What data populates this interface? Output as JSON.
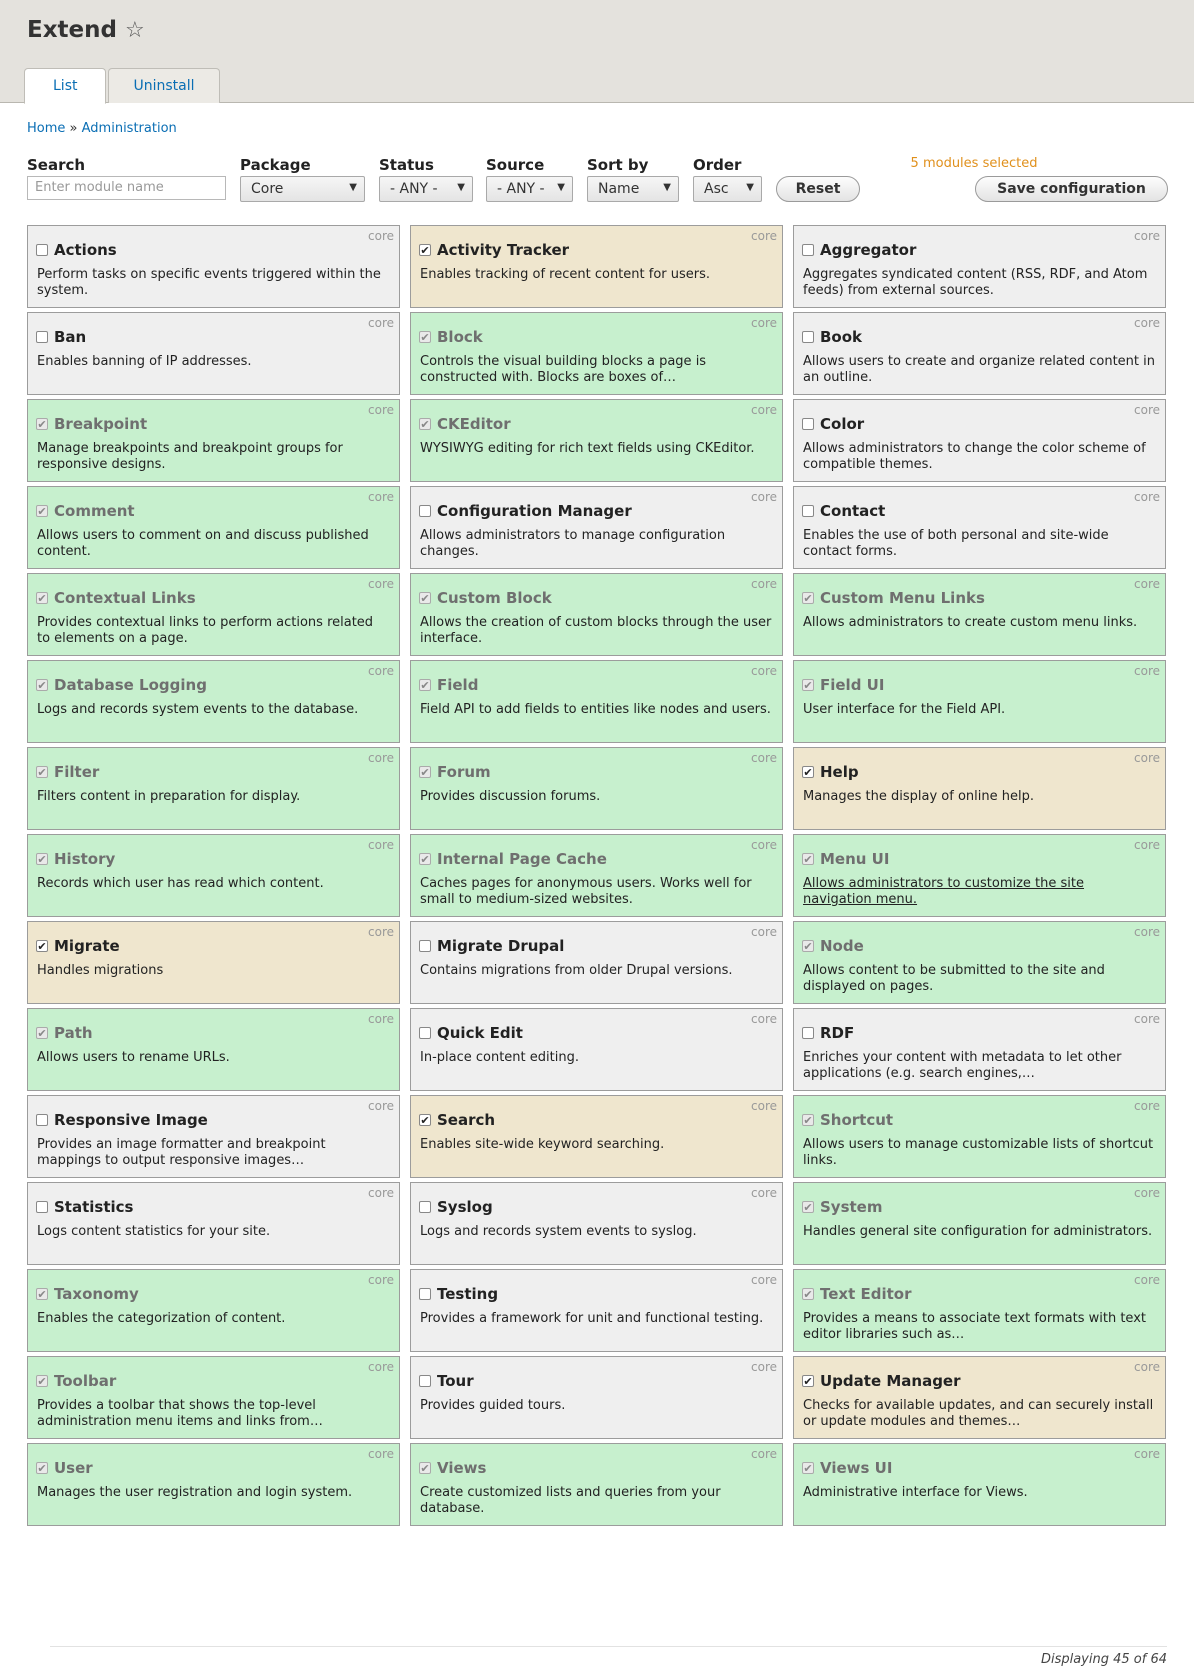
{
  "page": {
    "title": "Extend",
    "star_icon": "star-outline-icon"
  },
  "tabs": [
    {
      "label": "List",
      "active": true
    },
    {
      "label": "Uninstall",
      "active": false
    }
  ],
  "breadcrumb": {
    "home": "Home",
    "sep": "»",
    "admin": "Administration"
  },
  "filters": {
    "search_label": "Search",
    "search_placeholder": "Enter module name",
    "package_label": "Package",
    "package_value": "Core",
    "status_label": "Status",
    "status_value": "- ANY -",
    "source_label": "Source",
    "source_value": "- ANY -",
    "sortby_label": "Sort by",
    "sortby_value": "Name",
    "order_label": "Order",
    "order_value": "Asc",
    "reset_label": "Reset",
    "save_label": "Save configuration",
    "selected_count": "5 modules selected"
  },
  "core_tag": "core",
  "modules": [
    {
      "name": "Actions",
      "desc": "Perform tasks on specific events triggered within the system.",
      "state": "off"
    },
    {
      "name": "Activity Tracker",
      "desc": "Enables tracking of recent content for users.",
      "state": "selected"
    },
    {
      "name": "Aggregator",
      "desc": "Aggregates syndicated content (RSS, RDF, and Atom feeds) from external sources.",
      "state": "off"
    },
    {
      "name": "Ban",
      "desc": "Enables banning of IP addresses.",
      "state": "off"
    },
    {
      "name": "Block",
      "desc": "Controls the visual building blocks a page is constructed with. Blocks are boxes of…",
      "state": "installed"
    },
    {
      "name": "Book",
      "desc": "Allows users to create and organize related content in an outline.",
      "state": "off"
    },
    {
      "name": "Breakpoint",
      "desc": "Manage breakpoints and breakpoint groups for responsive designs.",
      "state": "installed"
    },
    {
      "name": "CKEditor",
      "desc": "WYSIWYG editing for rich text fields using CKEditor.",
      "state": "installed"
    },
    {
      "name": "Color",
      "desc": "Allows administrators to change the color scheme of compatible themes.",
      "state": "off"
    },
    {
      "name": "Comment",
      "desc": "Allows users to comment on and discuss published content.",
      "state": "installed"
    },
    {
      "name": "Configuration Manager",
      "desc": "Allows administrators to manage configuration changes.",
      "state": "off"
    },
    {
      "name": "Contact",
      "desc": "Enables the use of both personal and site-wide contact forms.",
      "state": "off"
    },
    {
      "name": "Contextual Links",
      "desc": "Provides contextual links to perform actions related to elements on a page.",
      "state": "installed"
    },
    {
      "name": "Custom Block",
      "desc": "Allows the creation of custom blocks through the user interface.",
      "state": "installed"
    },
    {
      "name": "Custom Menu Links",
      "desc": "Allows administrators to create custom menu links.",
      "state": "installed"
    },
    {
      "name": "Database Logging",
      "desc": "Logs and records system events to the database.",
      "state": "installed"
    },
    {
      "name": "Field",
      "desc": "Field API to add fields to entities like nodes and users.",
      "state": "installed"
    },
    {
      "name": "Field UI",
      "desc": "User interface for the Field API.",
      "state": "installed"
    },
    {
      "name": "Filter",
      "desc": "Filters content in preparation for display.",
      "state": "installed"
    },
    {
      "name": "Forum",
      "desc": "Provides discussion forums.",
      "state": "installed"
    },
    {
      "name": "Help",
      "desc": "Manages the display of online help.",
      "state": "selected"
    },
    {
      "name": "History",
      "desc": "Records which user has read which content.",
      "state": "installed"
    },
    {
      "name": "Internal Page Cache",
      "desc": "Caches pages for anonymous users. Works well for small to medium-sized websites.",
      "state": "installed"
    },
    {
      "name": "Menu UI",
      "desc": "Allows administrators to customize the site navigation menu.",
      "state": "installed",
      "link": true
    },
    {
      "name": "Migrate",
      "desc": "Handles migrations",
      "state": "selected"
    },
    {
      "name": "Migrate Drupal",
      "desc": "Contains migrations from older Drupal versions.",
      "state": "off"
    },
    {
      "name": "Node",
      "desc": "Allows content to be submitted to the site and displayed on pages.",
      "state": "installed"
    },
    {
      "name": "Path",
      "desc": "Allows users to rename URLs.",
      "state": "installed"
    },
    {
      "name": "Quick Edit",
      "desc": "In-place content editing.",
      "state": "off"
    },
    {
      "name": "RDF",
      "desc": "Enriches your content with metadata to let other applications (e.g. search engines,…",
      "state": "off"
    },
    {
      "name": "Responsive Image",
      "desc": "Provides an image formatter and breakpoint mappings to output responsive images…",
      "state": "off"
    },
    {
      "name": "Search",
      "desc": "Enables site-wide keyword searching.",
      "state": "selected"
    },
    {
      "name": "Shortcut",
      "desc": "Allows users to manage customizable lists of shortcut links.",
      "state": "installed"
    },
    {
      "name": "Statistics",
      "desc": "Logs content statistics for your site.",
      "state": "off"
    },
    {
      "name": "Syslog",
      "desc": "Logs and records system events to syslog.",
      "state": "off"
    },
    {
      "name": "System",
      "desc": "Handles general site configuration for administrators.",
      "state": "installed"
    },
    {
      "name": "Taxonomy",
      "desc": "Enables the categorization of content.",
      "state": "installed"
    },
    {
      "name": "Testing",
      "desc": "Provides a framework for unit and functional testing.",
      "state": "off"
    },
    {
      "name": "Text Editor",
      "desc": "Provides a means to associate text formats with text editor libraries such as…",
      "state": "installed"
    },
    {
      "name": "Toolbar",
      "desc": "Provides a toolbar that shows the top-level administration menu items and links from…",
      "state": "installed"
    },
    {
      "name": "Tour",
      "desc": "Provides guided tours.",
      "state": "off"
    },
    {
      "name": "Update Manager",
      "desc": "Checks for available updates, and can securely install or update modules and themes…",
      "state": "selected"
    },
    {
      "name": "User",
      "desc": "Manages the user registration and login system.",
      "state": "installed"
    },
    {
      "name": "Views",
      "desc": "Create customized lists and queries from your database.",
      "state": "installed"
    },
    {
      "name": "Views UI",
      "desc": "Administrative interface for Views.",
      "state": "installed"
    }
  ],
  "colors": {
    "installed": "#c7f0ce",
    "selected": "#efe6ce",
    "off": "#efefef",
    "link": "#0a6eb4"
  },
  "footer": {
    "display": "Displaying 45 of 64"
  }
}
